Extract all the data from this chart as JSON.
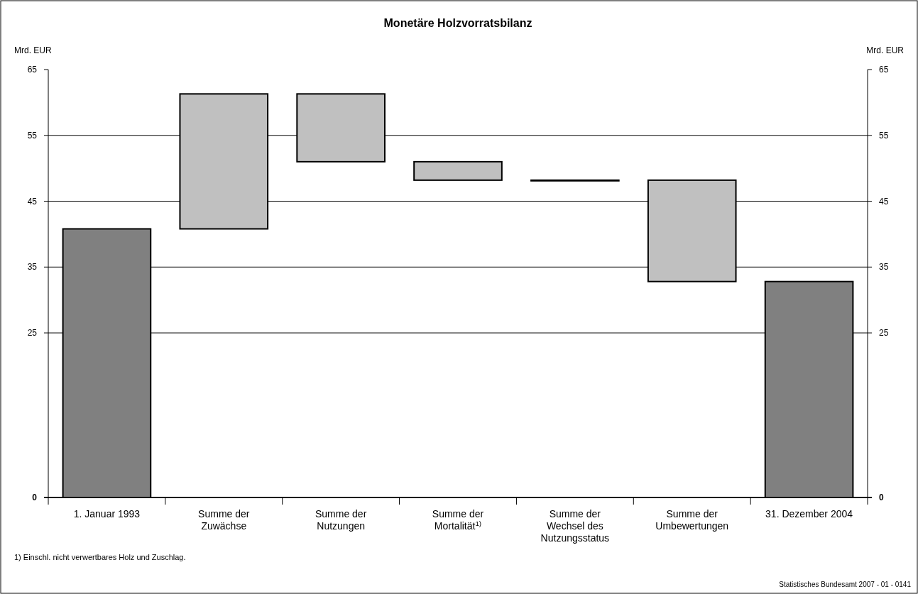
{
  "chart_data": {
    "type": "bar",
    "title": "Monetäre Holzvorratsbilanz",
    "ylabel": "Mrd. EUR",
    "y2label": "Mrd. EUR",
    "categories": [
      "1. Januar 1993",
      "Summe der Zuwächse",
      "Summe der Nutzungen",
      "Summe der Mortalität$^{1)}$",
      "Summe der Wechsel des Nutzungsstatus",
      "Summe der Umbewertungen",
      "31. Dezember 2004"
    ],
    "values": [
      40.8,
      20.5,
      -10.3,
      -2.8,
      -0.1,
      -15.4,
      32.8
    ],
    "base": [
      0,
      40.8,
      61.3,
      51.0,
      48.2,
      48.2,
      0
    ],
    "colors": [
      "#808080",
      "#c0c0c0",
      "#c0c0c0",
      "#c0c0c0",
      "#c0c0c0",
      "#c0c0c0",
      "#808080"
    ],
    "ylim": [
      0,
      65
    ],
    "yticks": [
      0,
      25,
      35,
      45,
      55,
      65
    ],
    "y2lim": [
      0,
      65
    ],
    "y2ticks": [
      0,
      25,
      35,
      45,
      55,
      65
    ],
    "grid": "y",
    "annotations": [
      "1) Einschl. nicht verwertbares Holz und Zuschlag.",
      "Statistisches Bundesamt 2007 - 01 - 0141"
    ]
  }
}
